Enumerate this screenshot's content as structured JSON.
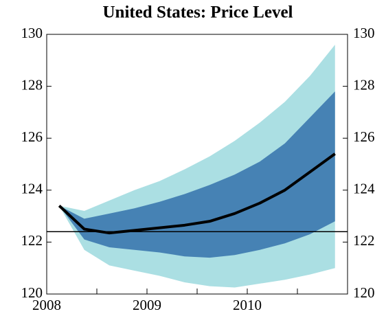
{
  "chart_data": {
    "type": "fan",
    "title": "United States: Price Level",
    "x": [
      2008.125,
      2008.375,
      2008.625,
      2008.875,
      2009.125,
      2009.375,
      2009.625,
      2009.875,
      2010.125,
      2010.375,
      2010.625,
      2010.875
    ],
    "xlim": [
      2008,
      2011
    ],
    "xticks": [
      2008,
      2009,
      2010
    ],
    "minor_xticks": [
      2008.5,
      2009.5,
      2010.5
    ],
    "ylim": [
      120,
      130
    ],
    "yticks": [
      120,
      122,
      124,
      126,
      128,
      130
    ],
    "right_axis": true,
    "reference_line": 122.4,
    "bands": [
      {
        "color": "#abdfe3",
        "lower": [
          123.4,
          121.7,
          121.1,
          120.9,
          120.7,
          120.45,
          120.3,
          120.25,
          120.4,
          120.55,
          120.75,
          121.0
        ],
        "upper": [
          123.4,
          123.2,
          123.6,
          124.0,
          124.35,
          124.8,
          125.3,
          125.9,
          126.6,
          127.4,
          128.4,
          129.6
        ]
      },
      {
        "color": "#4682b4",
        "lower": [
          123.4,
          122.1,
          121.8,
          121.7,
          121.6,
          121.45,
          121.4,
          121.5,
          121.7,
          121.95,
          122.3,
          122.8
        ],
        "upper": [
          123.4,
          122.9,
          123.1,
          123.3,
          123.55,
          123.85,
          124.2,
          124.6,
          125.1,
          125.8,
          126.8,
          127.8
        ]
      }
    ],
    "median": {
      "color": "#000000",
      "values": [
        123.4,
        122.5,
        122.35,
        122.45,
        122.55,
        122.65,
        122.8,
        123.1,
        123.5,
        124.0,
        124.7,
        125.4
      ]
    }
  }
}
